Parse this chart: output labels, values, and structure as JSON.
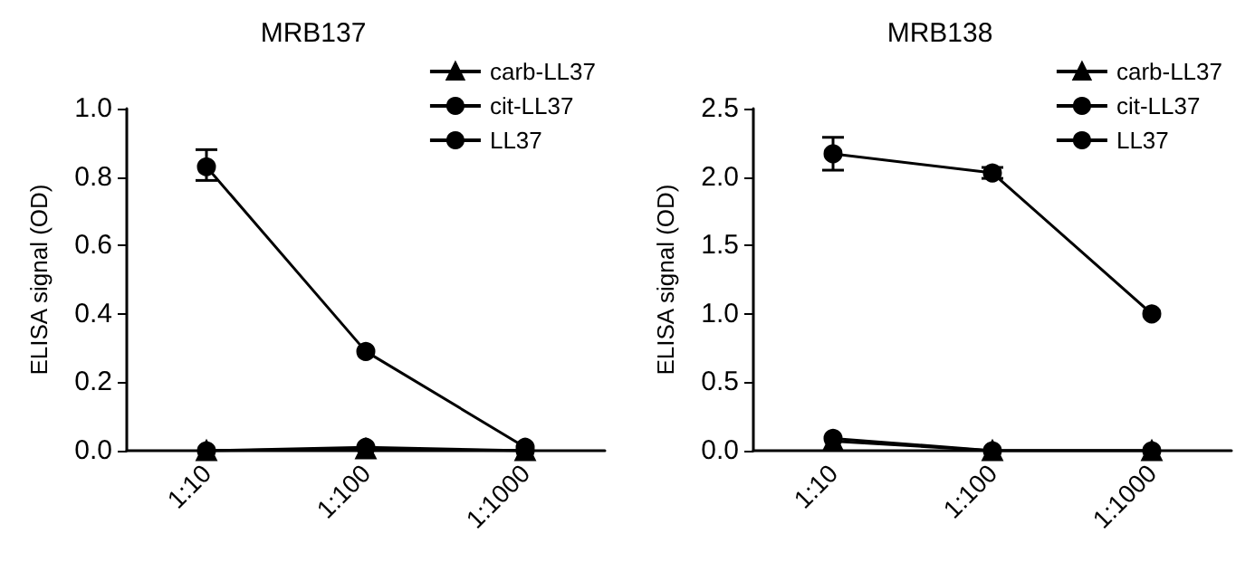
{
  "chart_data": [
    {
      "type": "line",
      "title": "MRB137",
      "ylabel": "ELISA signal (OD)",
      "categories": [
        "1:10",
        "1:100",
        "1:1000"
      ],
      "ylim": [
        0,
        1.0
      ],
      "yticks": [
        {
          "value": 0,
          "label": "0.0"
        },
        {
          "value": 0.2,
          "label": "0.2"
        },
        {
          "value": 0.4,
          "label": "0.4"
        },
        {
          "value": 0.6,
          "label": "0.6"
        },
        {
          "value": 0.8,
          "label": "0.8"
        },
        {
          "value": 1.0,
          "label": "1.0"
        }
      ],
      "grid": false,
      "legend": "top right",
      "line_style": "solid",
      "series": [
        {
          "name": "carb-LL37",
          "color": "#000000",
          "marker": "triangle",
          "values": [
            0.0,
            0.005,
            0.0
          ]
        },
        {
          "name": "cit-LL37",
          "color": "#000000",
          "marker": "circle",
          "values": [
            0.0,
            0.01,
            0.0
          ]
        },
        {
          "name": "LL37",
          "color": "#000000",
          "marker": "circle",
          "values": [
            0.83,
            0.29,
            0.01
          ],
          "errors": [
            [
              0.79,
              0.88
            ],
            null,
            null
          ]
        }
      ]
    },
    {
      "type": "line",
      "title": "MRB138",
      "ylabel": "ELISA signal (OD)",
      "categories": [
        "1:10",
        "1:100",
        "1:1000"
      ],
      "ylim": [
        0,
        2.5
      ],
      "yticks": [
        {
          "value": 0,
          "label": "0.0"
        },
        {
          "value": 0.5,
          "label": "0.5"
        },
        {
          "value": 1.0,
          "label": "1.0"
        },
        {
          "value": 1.5,
          "label": "1.5"
        },
        {
          "value": 2.0,
          "label": "2.0"
        },
        {
          "value": 2.5,
          "label": "2.5"
        }
      ],
      "grid": false,
      "legend": "top right",
      "line_style": "solid",
      "series": [
        {
          "name": "carb-LL37",
          "color": "#000000",
          "marker": "triangle",
          "values": [
            0.07,
            0.0,
            0.0
          ]
        },
        {
          "name": "cit-LL37",
          "color": "#000000",
          "marker": "circle",
          "values": [
            0.09,
            0.0,
            0.0
          ]
        },
        {
          "name": "LL37",
          "color": "#000000",
          "marker": "circle",
          "values": [
            2.17,
            2.03,
            1.0
          ],
          "errors": [
            [
              2.05,
              2.29
            ],
            [
              1.99,
              2.07
            ],
            null
          ]
        }
      ]
    }
  ]
}
